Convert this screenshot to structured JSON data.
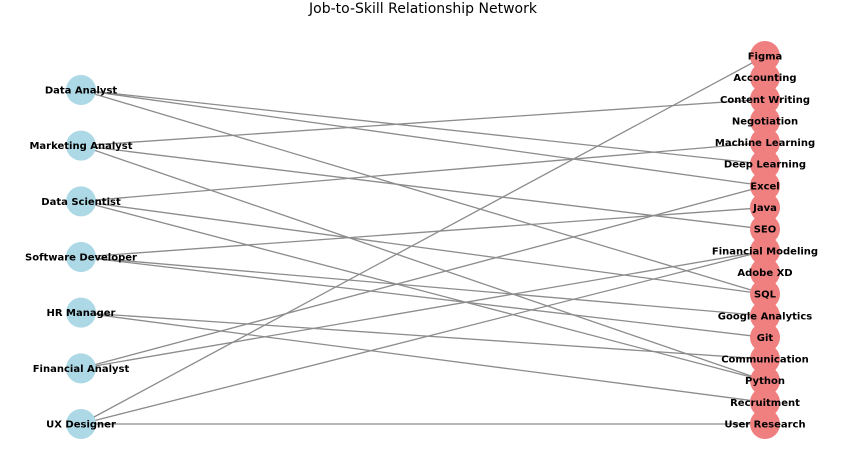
{
  "title": "Job-to-Skill Relationship Network",
  "colors": {
    "job_node": "#add8e6",
    "skill_node": "#f08080",
    "edge": "#8c8c8c",
    "background": "#ffffff"
  },
  "jobs": [
    "Data Analyst",
    "Marketing Analyst",
    "Data Scientist",
    "Software Developer",
    "HR Manager",
    "Financial Analyst",
    "UX Designer"
  ],
  "skills": [
    "Figma",
    "Accounting",
    "Content Writing",
    "Negotiation",
    "Machine Learning",
    "Deep Learning",
    "Excel",
    "Java",
    "SEO",
    "Financial Modeling",
    "Adobe XD",
    "SQL",
    "Google Analytics",
    "Git",
    "Communication",
    "Python",
    "Recruitment",
    "User Research"
  ],
  "edges": [
    [
      "Data Analyst",
      "Deep Learning"
    ],
    [
      "Data Analyst",
      "Excel"
    ],
    [
      "Data Analyst",
      "SQL"
    ],
    [
      "Marketing Analyst",
      "Content Writing"
    ],
    [
      "Marketing Analyst",
      "SEO"
    ],
    [
      "Marketing Analyst",
      "Python"
    ],
    [
      "Data Scientist",
      "Machine Learning"
    ],
    [
      "Data Scientist",
      "SQL"
    ],
    [
      "Data Scientist",
      "Python"
    ],
    [
      "Software Developer",
      "Java"
    ],
    [
      "Software Developer",
      "Google Analytics"
    ],
    [
      "Software Developer",
      "Git"
    ],
    [
      "HR Manager",
      "Communication"
    ],
    [
      "HR Manager",
      "Recruitment"
    ],
    [
      "Financial Analyst",
      "Excel"
    ],
    [
      "Financial Analyst",
      "Financial Modeling"
    ],
    [
      "UX Designer",
      "Figma"
    ],
    [
      "UX Designer",
      "Financial Modeling"
    ],
    [
      "UX Designer",
      "User Research"
    ]
  ]
}
